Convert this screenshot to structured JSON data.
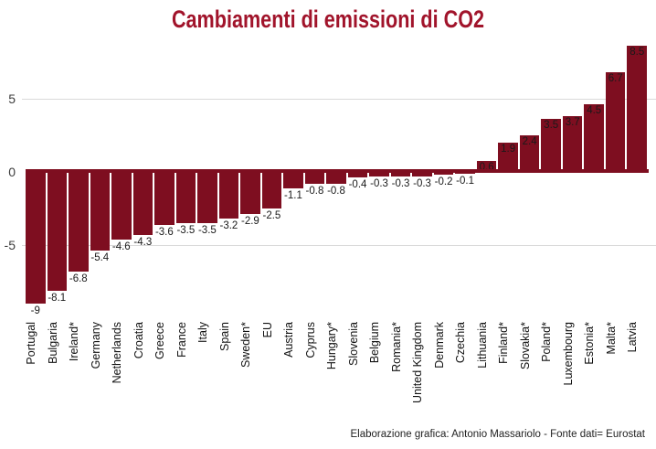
{
  "title": "Cambiamenti di emissioni di CO2",
  "caption": "Elaborazione grafica: Antonio Massariolo - Fonte dati= Eurostat",
  "colors": {
    "bar": "#7E0E20",
    "zero_line": "#7E0E20",
    "title": "#A1142B",
    "gridline": "#D9D9D9",
    "value_label": "#1A1A1A",
    "axis_tick_label": "#3C3C3C",
    "country_label": "#111111",
    "background": "#FFFFFF"
  },
  "y_axis": {
    "ticks": [
      5,
      0,
      -5
    ],
    "gridlines": true
  },
  "chart_data": {
    "type": "bar",
    "title": "Cambiamenti di emissioni di CO2",
    "xlabel": "",
    "ylabel": "",
    "ylim": [
      -10,
      9.1
    ],
    "legend": "none",
    "grid": "horizontal",
    "bar_color": "#7E0E20",
    "categories": [
      "Portugal",
      "Bulgaria",
      "Ireland*",
      "Germany",
      "Netherlands",
      "Croatia",
      "Greece",
      "France",
      "Italy",
      "Spain",
      "Sweden*",
      "EU",
      "Austria",
      "Cyprus",
      "Hungary*",
      "Slovenia",
      "Belgium",
      "Romania*",
      "United Kingdom",
      "Denmark",
      "Czechia",
      "Lithuania",
      "Finland*",
      "Slovakia*",
      "Poland*",
      "Luxembourg",
      "Estonia*",
      "Malta*",
      "Latvia"
    ],
    "values": [
      -9,
      -8.1,
      -6.8,
      -5.4,
      -4.6,
      -4.3,
      -3.6,
      -3.5,
      -3.5,
      -3.2,
      -2.9,
      -2.5,
      -1.1,
      -0.8,
      -0.8,
      -0.4,
      -0.3,
      -0.3,
      -0.3,
      -0.2,
      -0.1,
      0.6,
      1.9,
      2.4,
      3.5,
      3.7,
      4.5,
      6.7,
      8.5
    ],
    "value_labels": [
      "-9",
      "-8.1",
      "-6.8",
      "-5.4",
      "-4.6",
      "-4.3",
      "-3.6",
      "-3.5",
      "-3.5",
      "-3.2",
      "-2.9",
      "-2.5",
      "-1.1",
      "-0.8",
      "-0.8",
      "-0.4",
      "-0.3",
      "-0.3",
      "-0.3",
      "-0.2",
      "-0.1",
      "0.6",
      "1.9",
      "2.4",
      "3.5",
      "3.7",
      "4.5",
      "6.7",
      "8.5"
    ]
  }
}
